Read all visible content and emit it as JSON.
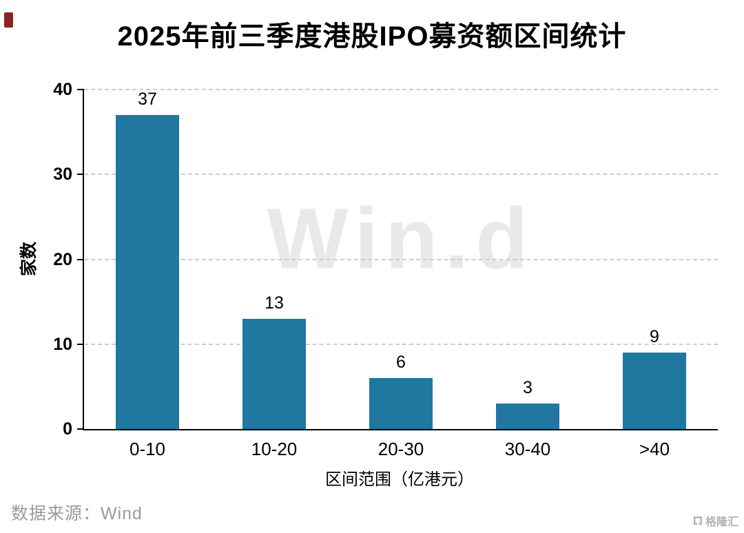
{
  "page": {
    "watermark": "Win.d",
    "source_text": "数据来源：Wind",
    "logo_text": "格隆汇"
  },
  "chart_data": {
    "type": "bar",
    "title": "2025年前三季度港股IPO募资额区间统计",
    "categories": [
      "0-10",
      "10-20",
      "20-30",
      "30-40",
      ">40"
    ],
    "values": [
      37,
      13,
      6,
      3,
      9
    ],
    "xlabel": "区间范围（亿港元）",
    "ylabel": "家数",
    "ylim": [
      0,
      40
    ],
    "yticks": [
      0,
      10,
      20,
      30,
      40
    ],
    "grid": "horizontal dashed",
    "legend": "none",
    "bar_color": "#2077A0"
  }
}
